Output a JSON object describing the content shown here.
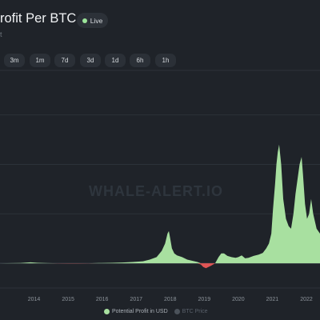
{
  "header": {
    "title": "rofit Per BTC",
    "title_tail": "t",
    "live_label": "Live",
    "live_color": "#9ce59a"
  },
  "range_buttons": [
    {
      "label": "3m"
    },
    {
      "label": "1m"
    },
    {
      "label": "7d"
    },
    {
      "label": "3d"
    },
    {
      "label": "1d"
    },
    {
      "label": "6h"
    },
    {
      "label": "1h"
    }
  ],
  "watermark": "WHALE-ALERT.IO",
  "chart_data": {
    "type": "area",
    "title": "",
    "xlabel": "",
    "ylabel": "",
    "grid": true,
    "legend_position": "bottom",
    "x_ticks": [
      "2014",
      "2015",
      "2016",
      "2017",
      "2018",
      "2019",
      "2020",
      "2021",
      "2022"
    ],
    "series": [
      {
        "name": "Potential Profit in USD",
        "color_positive": "#a8e0a0",
        "color_negative": "#e05555",
        "active": true,
        "x": [
          2013.0,
          2013.6,
          2013.9,
          2014.1,
          2014.4,
          2014.7,
          2015.0,
          2015.3,
          2015.6,
          2015.9,
          2016.3,
          2016.6,
          2016.9,
          2017.2,
          2017.4,
          2017.6,
          2017.75,
          2017.85,
          2017.92,
          2017.96,
          2018.0,
          2018.05,
          2018.12,
          2018.2,
          2018.35,
          2018.5,
          2018.65,
          2018.8,
          2018.9,
          2018.97,
          2019.05,
          2019.2,
          2019.32,
          2019.42,
          2019.5,
          2019.58,
          2019.68,
          2019.8,
          2019.92,
          2020.0,
          2020.1,
          2020.2,
          2020.3,
          2020.45,
          2020.6,
          2020.72,
          2020.82,
          2020.9,
          2020.97,
          2021.02,
          2021.08,
          2021.12,
          2021.16,
          2021.2,
          2021.26,
          2021.32,
          2021.4,
          2021.48,
          2021.55,
          2021.62,
          2021.68,
          2021.74,
          2021.8,
          2021.86,
          2021.9,
          2021.96,
          2022.02,
          2022.08,
          2022.14,
          2022.2,
          2022.3,
          2022.4
        ],
        "y": [
          0,
          0.1,
          0.4,
          0.2,
          0.05,
          -0.05,
          -0.1,
          -0.1,
          -0.05,
          0.1,
          0.2,
          0.3,
          0.5,
          0.8,
          1.5,
          2.5,
          5,
          8,
          12,
          13,
          10,
          6,
          4,
          3.2,
          2.5,
          1.5,
          1,
          0.5,
          -0.5,
          -1.5,
          -2,
          -1,
          0,
          2.5,
          4,
          4,
          3,
          2.5,
          2.2,
          2.5,
          3.2,
          2,
          2.2,
          3,
          3.5,
          4.2,
          6,
          8,
          12,
          22,
          32,
          40,
          45,
          48,
          40,
          26,
          18,
          15,
          14,
          20,
          28,
          34,
          40,
          43,
          36,
          24,
          18,
          20,
          26,
          20,
          14,
          12
        ]
      },
      {
        "name": "BTC Price",
        "color": "#6d747c",
        "active": false
      }
    ],
    "xlim": [
      2013.0,
      2022.4
    ],
    "ylim": [
      -10,
      78
    ]
  }
}
